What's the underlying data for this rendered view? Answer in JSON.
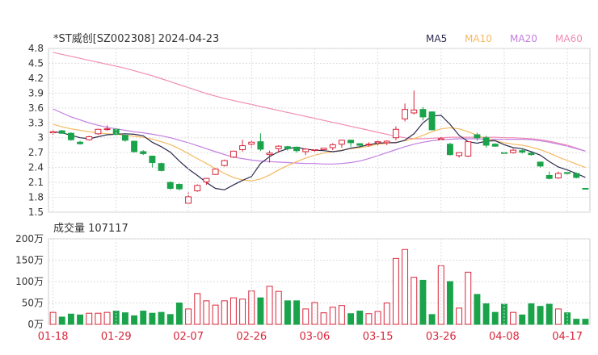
{
  "chart_data": {
    "type": "candlestick",
    "title": "*ST威创[SZ002308] 2024-04-23",
    "legend": [
      {
        "name": "MA5",
        "color": "#2b2b4f"
      },
      {
        "name": "MA10",
        "color": "#f5b95e"
      },
      {
        "name": "MA20",
        "color": "#c27ee0"
      },
      {
        "name": "MA60",
        "color": "#f08cb4"
      }
    ],
    "up_color": "#d9263a",
    "down_color": "#1aa34a",
    "price_axis": {
      "min": 1.5,
      "max": 4.8,
      "ticks": [
        "4.8",
        "4.5",
        "4.2",
        "3.9",
        "3.6",
        "3.3",
        "3",
        "2.7",
        "2.4",
        "2.1",
        "1.8",
        "1.5"
      ]
    },
    "x_labels": [
      "01-18",
      "01-29",
      "02-07",
      "02-26",
      "03-06",
      "03-15",
      "03-26",
      "04-08",
      "04-17"
    ],
    "candles": [
      [
        3.1,
        3.17,
        3.12,
        3.06
      ],
      [
        3.14,
        3.16,
        3.09,
        3.08
      ],
      [
        3.09,
        3.11,
        2.96,
        2.94
      ],
      [
        2.91,
        2.94,
        2.88,
        2.86
      ],
      [
        2.96,
        3.04,
        3.02,
        2.94
      ],
      [
        3.08,
        3.18,
        3.17,
        3.06
      ],
      [
        3.17,
        3.25,
        3.18,
        3.14
      ],
      [
        3.17,
        3.18,
        3.07,
        3.05
      ],
      [
        3.05,
        3.06,
        2.95,
        2.92
      ],
      [
        2.93,
        2.94,
        2.72,
        2.7
      ],
      [
        2.72,
        2.75,
        2.68,
        2.65
      ],
      [
        2.63,
        2.64,
        2.5,
        2.4
      ],
      [
        2.48,
        2.5,
        2.34,
        2.32
      ],
      [
        2.1,
        2.12,
        1.98,
        1.95
      ],
      [
        2.06,
        2.08,
        1.97,
        1.94
      ],
      [
        1.68,
        1.9,
        1.81,
        1.65
      ],
      [
        1.93,
        2.06,
        2.04,
        1.91
      ],
      [
        2.11,
        2.19,
        2.18,
        2.05
      ],
      [
        2.26,
        2.38,
        2.37,
        2.25
      ],
      [
        2.44,
        2.56,
        2.54,
        2.42
      ],
      [
        2.61,
        2.74,
        2.73,
        2.59
      ],
      [
        2.76,
        2.96,
        2.84,
        2.72
      ],
      [
        2.87,
        2.94,
        2.91,
        2.8
      ],
      [
        2.92,
        3.09,
        2.77,
        2.73
      ],
      [
        2.66,
        2.74,
        2.69,
        2.5
      ],
      [
        2.78,
        2.85,
        2.83,
        2.7
      ],
      [
        2.82,
        2.84,
        2.78,
        2.74
      ],
      [
        2.81,
        2.82,
        2.74,
        2.7
      ],
      [
        2.72,
        2.79,
        2.77,
        2.65
      ],
      [
        2.75,
        2.77,
        2.76,
        2.7
      ],
      [
        2.76,
        2.79,
        2.79,
        2.74
      ],
      [
        2.8,
        2.89,
        2.86,
        2.75
      ],
      [
        2.87,
        2.96,
        2.95,
        2.8
      ],
      [
        2.95,
        2.96,
        2.9,
        2.82
      ],
      [
        2.88,
        2.89,
        2.85,
        2.8
      ],
      [
        2.86,
        2.91,
        2.87,
        2.82
      ],
      [
        2.9,
        2.94,
        2.92,
        2.85
      ],
      [
        2.9,
        2.95,
        2.93,
        2.85
      ],
      [
        3.0,
        3.23,
        3.17,
        2.95
      ],
      [
        3.38,
        3.69,
        3.57,
        3.33
      ],
      [
        3.5,
        3.95,
        3.56,
        3.47
      ],
      [
        3.57,
        3.62,
        3.42,
        3.35
      ],
      [
        3.52,
        3.53,
        3.16,
        3.15
      ],
      [
        2.98,
        3.01,
        2.98,
        2.97
      ],
      [
        2.87,
        2.9,
        2.66,
        2.64
      ],
      [
        2.64,
        2.7,
        2.7,
        2.6
      ],
      [
        2.63,
        2.93,
        2.92,
        2.61
      ],
      [
        3.06,
        3.1,
        3.0,
        2.94
      ],
      [
        3.0,
        3.04,
        2.85,
        2.8
      ],
      [
        2.87,
        2.89,
        2.83,
        2.82
      ],
      [
        2.7,
        2.72,
        2.69,
        2.68
      ],
      [
        2.7,
        2.78,
        2.75,
        2.68
      ],
      [
        2.74,
        2.77,
        2.71,
        2.68
      ],
      [
        2.69,
        2.71,
        2.66,
        2.64
      ],
      [
        2.51,
        2.51,
        2.43,
        2.4
      ],
      [
        2.24,
        2.32,
        2.18,
        2.16
      ],
      [
        2.19,
        2.32,
        2.28,
        2.17
      ],
      [
        2.3,
        2.32,
        2.28,
        2.26
      ],
      [
        2.28,
        2.3,
        2.2,
        2.18
      ],
      [
        1.98,
        1.98,
        1.97,
        1.97
      ]
    ],
    "ma": {
      "MA5": [
        3.12,
        3.1,
        3.05,
        3.0,
        2.98,
        3.02,
        3.06,
        3.07,
        3.08,
        3.07,
        3.04,
        2.91,
        2.82,
        2.71,
        2.53,
        2.37,
        2.24,
        2.1,
        1.98,
        1.95,
        2.05,
        2.14,
        2.22,
        2.48,
        2.62,
        2.72,
        2.78,
        2.81,
        2.77,
        2.75,
        2.74,
        2.72,
        2.74,
        2.79,
        2.82,
        2.86,
        2.89,
        2.9,
        2.9,
        2.95,
        3.08,
        3.3,
        3.44,
        3.45,
        3.27,
        3.05,
        2.92,
        2.89,
        2.93,
        2.94,
        2.86,
        2.8,
        2.78,
        2.72,
        2.65,
        2.52,
        2.41,
        2.35,
        2.28,
        2.2
      ],
      "MA10": [
        3.27,
        3.22,
        3.18,
        3.15,
        3.12,
        3.1,
        3.08,
        3.07,
        3.05,
        3.03,
        3.01,
        2.97,
        2.92,
        2.86,
        2.78,
        2.68,
        2.58,
        2.48,
        2.38,
        2.28,
        2.2,
        2.15,
        2.13,
        2.17,
        2.25,
        2.35,
        2.44,
        2.52,
        2.59,
        2.65,
        2.69,
        2.72,
        2.75,
        2.78,
        2.8,
        2.83,
        2.87,
        2.89,
        2.91,
        2.94,
        2.98,
        3.05,
        3.12,
        3.18,
        3.2,
        3.18,
        3.12,
        3.05,
        2.98,
        2.94,
        2.9,
        2.87,
        2.85,
        2.81,
        2.76,
        2.69,
        2.61,
        2.54,
        2.47,
        2.4
      ],
      "MA20": [
        3.58,
        3.5,
        3.42,
        3.36,
        3.3,
        3.25,
        3.21,
        3.18,
        3.15,
        3.12,
        3.1,
        3.07,
        3.04,
        3.0,
        2.95,
        2.9,
        2.84,
        2.78,
        2.72,
        2.66,
        2.61,
        2.58,
        2.55,
        2.53,
        2.52,
        2.51,
        2.5,
        2.49,
        2.48,
        2.48,
        2.47,
        2.47,
        2.48,
        2.5,
        2.53,
        2.58,
        2.64,
        2.7,
        2.76,
        2.82,
        2.87,
        2.91,
        2.94,
        2.96,
        2.97,
        2.98,
        2.98,
        2.98,
        2.97,
        2.97,
        2.97,
        2.97,
        2.97,
        2.96,
        2.94,
        2.91,
        2.87,
        2.83,
        2.78,
        2.73
      ],
      "MA60": [
        4.72,
        4.68,
        4.64,
        4.6,
        4.56,
        4.52,
        4.48,
        4.44,
        4.4,
        4.35,
        4.3,
        4.25,
        4.19,
        4.13,
        4.07,
        4.01,
        3.95,
        3.89,
        3.84,
        3.79,
        3.75,
        3.71,
        3.67,
        3.63,
        3.59,
        3.55,
        3.51,
        3.47,
        3.43,
        3.39,
        3.35,
        3.31,
        3.27,
        3.23,
        3.19,
        3.15,
        3.11,
        3.07,
        3.03,
        3.0,
        2.98,
        2.98,
        2.99,
        3.0,
        3.01,
        3.01,
        3.01,
        3.01,
        3.01,
        3.01,
        3.0,
        3.0,
        2.99,
        2.98,
        2.96,
        2.93,
        2.89,
        2.85,
        2.79,
        2.73
      ]
    },
    "volume_title": "成交量 107117",
    "volume_axis": {
      "min": 0,
      "max": 200,
      "unit": "万",
      "ticks": [
        "200万",
        "150万",
        "100万",
        "50万",
        "0万"
      ]
    },
    "volumes": [
      28,
      17,
      24,
      22,
      26,
      26,
      28,
      31,
      27,
      20,
      31,
      26,
      28,
      23,
      50,
      36,
      72,
      55,
      45,
      55,
      62,
      59,
      78,
      62,
      89,
      77,
      55,
      55,
      36,
      51,
      27,
      40,
      44,
      25,
      31,
      25,
      30,
      50,
      154,
      175,
      110,
      103,
      23,
      137,
      100,
      38,
      122,
      70,
      48,
      28,
      47,
      28,
      22,
      48,
      42,
      47,
      36,
      27,
      12,
      12
    ]
  }
}
